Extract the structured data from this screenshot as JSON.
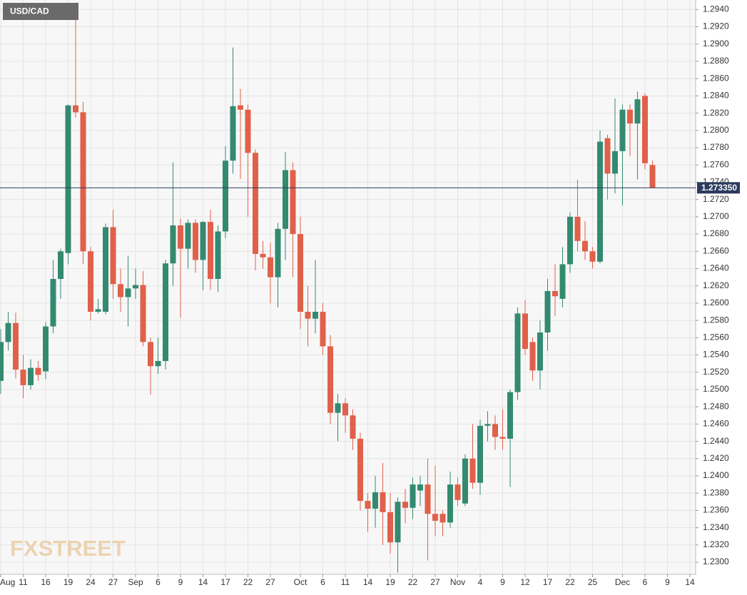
{
  "chart_data": {
    "type": "candlestick",
    "title": "USD/CAD",
    "watermark": "FXSTREET",
    "up_color": "#338a70",
    "down_color": "#e0604a",
    "grid": true,
    "categories": [
      "Aug",
      null,
      null,
      "11",
      null,
      null,
      "16",
      null,
      null,
      "19",
      null,
      null,
      "24",
      null,
      null,
      "27",
      null,
      null,
      "Sep",
      null,
      null,
      "6",
      null,
      null,
      "9",
      null,
      null,
      "14",
      null,
      null,
      "17",
      null,
      null,
      "22",
      null,
      null,
      "27",
      null,
      null,
      null,
      "Oct",
      null,
      null,
      "6",
      null,
      null,
      "11",
      null,
      null,
      "14",
      null,
      null,
      "19",
      null,
      null,
      "22",
      null,
      null,
      "27",
      null,
      null,
      "Nov",
      null,
      null,
      "4",
      null,
      null,
      "9",
      null,
      null,
      "12",
      null,
      null,
      "17",
      null,
      null,
      "22",
      null,
      null,
      "25",
      null,
      null,
      null,
      "Dec",
      null,
      null,
      "6",
      null,
      null,
      "9",
      null,
      null,
      "14"
    ],
    "open": [
      1.251,
      1.2555,
      1.2577,
      1.2523,
      1.2505,
      1.2525,
      1.2521,
      1.2573,
      1.2628,
      1.2658,
      1.2829,
      1.2821,
      1.266,
      1.259,
      1.259,
      1.2688,
      1.2622,
      1.2607,
      1.2617,
      1.2621,
      1.2555,
      1.2527,
      1.2533,
      1.2646,
      1.269,
      1.2663,
      1.2693,
      1.265,
      1.2694,
      1.2628,
      1.2683,
      1.2765,
      1.2829,
      1.2824,
      1.2774,
      1.2657,
      1.2653,
      1.263,
      1.2686,
      1.2754,
      1.268,
      1.259,
      1.2582,
      1.259,
      1.255,
      1.2473,
      1.2484,
      1.247,
      1.2443,
      1.2371,
      1.2362,
      1.2381,
      1.2358,
      1.2323,
      1.237,
      1.2363,
      1.2383,
      1.239,
      1.2356,
      1.2356,
      1.2346,
      1.239,
      1.2368,
      1.242,
      1.2392,
      1.2458,
      1.246,
      1.2445,
      1.2443,
      1.2497,
      1.2588,
      1.2555,
      1.2522,
      1.2566,
      1.2614,
      1.2605,
      1.2645,
      1.27,
      1.2672,
      1.266,
      1.2648,
      1.2791,
      1.275,
      1.2776,
      1.2824,
      1.2808,
      1.284,
      1.276,
      null,
      null,
      null,
      null,
      null
    ],
    "high": [
      1.257,
      1.259,
      1.2589,
      1.254,
      1.2535,
      1.2533,
      1.2578,
      1.265,
      1.2663,
      1.283,
      1.2948,
      1.2833,
      1.2665,
      1.2605,
      1.2692,
      1.2708,
      1.264,
      1.2655,
      1.264,
      1.2637,
      1.256,
      1.256,
      1.265,
      1.2763,
      1.2698,
      1.2697,
      1.2697,
      1.2695,
      1.2708,
      1.269,
      1.2782,
      1.2896,
      1.2848,
      1.283,
      1.2778,
      1.2672,
      1.267,
      1.2693,
      1.2775,
      1.2763,
      1.27,
      1.262,
      1.265,
      1.26,
      1.2563,
      1.2495,
      1.249,
      1.2477,
      1.245,
      1.238,
      1.24,
      1.2415,
      1.238,
      1.2375,
      1.2385,
      1.2398,
      1.24,
      1.242,
      1.2412,
      1.236,
      1.2405,
      1.2398,
      1.2425,
      1.246,
      1.2465,
      1.2475,
      1.247,
      1.2477,
      1.25,
      1.2595,
      1.2604,
      1.256,
      1.258,
      1.2628,
      1.2645,
      1.2665,
      1.2705,
      1.2743,
      1.2695,
      1.2665,
      1.28,
      1.2795,
      1.2837,
      1.283,
      1.283,
      1.2845,
      1.2843,
      1.2765,
      null,
      null,
      null,
      null,
      null
    ],
    "low": [
      1.2495,
      1.2545,
      1.2513,
      1.249,
      1.25,
      1.251,
      1.2512,
      1.2565,
      1.2605,
      1.2645,
      1.2815,
      1.2645,
      1.258,
      1.2588,
      1.2587,
      1.2605,
      1.259,
      1.2573,
      1.2605,
      1.255,
      1.2494,
      1.2518,
      1.2523,
      1.262,
      1.2583,
      1.264,
      1.2635,
      1.2615,
      1.2615,
      1.2613,
      1.2675,
      1.275,
      1.2744,
      1.27,
      1.2638,
      1.264,
      1.26,
      1.2595,
      1.265,
      1.263,
      1.257,
      1.255,
      1.2565,
      1.254,
      1.246,
      1.244,
      1.245,
      1.243,
      1.236,
      1.2335,
      1.234,
      1.232,
      1.231,
      1.2288,
      1.2345,
      1.235,
      1.2365,
      1.2302,
      1.233,
      1.233,
      1.234,
      1.2365,
      1.2365,
      1.2385,
      1.2378,
      1.244,
      1.243,
      1.243,
      1.2387,
      1.2488,
      1.254,
      1.251,
      1.25,
      1.2545,
      1.2585,
      1.2595,
      1.2635,
      1.266,
      1.265,
      1.264,
      1.2646,
      1.272,
      1.2727,
      1.2713,
      1.277,
      1.2743,
      1.2755,
      1.2733,
      null,
      null,
      null,
      null,
      null
    ],
    "close": [
      1.2555,
      1.2577,
      1.2523,
      1.2505,
      1.2525,
      1.2517,
      1.2573,
      1.2628,
      1.266,
      1.2829,
      1.2821,
      1.266,
      1.259,
      1.2593,
      1.2688,
      1.2622,
      1.2607,
      1.2617,
      1.2621,
      1.2555,
      1.2527,
      1.2533,
      1.2646,
      1.269,
      1.2663,
      1.2693,
      1.265,
      1.2694,
      1.2628,
      1.2683,
      1.2765,
      1.2828,
      1.2824,
      1.2774,
      1.2657,
      1.2653,
      1.263,
      1.2686,
      1.2754,
      1.268,
      1.259,
      1.2582,
      1.259,
      1.255,
      1.2473,
      1.2484,
      1.247,
      1.2443,
      1.2371,
      1.2362,
      1.2381,
      1.2358,
      1.2323,
      1.237,
      1.2363,
      1.239,
      1.239,
      1.2356,
      1.2348,
      1.2346,
      1.239,
      1.2372,
      1.242,
      1.2392,
      1.2458,
      1.246,
      1.2445,
      1.2443,
      1.2497,
      1.2588,
      1.2547,
      1.2522,
      1.2566,
      1.2614,
      1.2608,
      1.2645,
      1.27,
      1.2672,
      1.266,
      1.2648,
      1.2787,
      1.275,
      1.2776,
      1.2824,
      1.2808,
      1.2836,
      1.2762,
      1.27335,
      null,
      null,
      null,
      null,
      null
    ],
    "current_price": {
      "value": 1.27335,
      "label": "1.273350",
      "color": "#2b3a5c"
    },
    "ylim": [
      1.2286,
      1.2951
    ],
    "yticks": [
      {
        "value": 1.23,
        "label": "1.2300"
      },
      {
        "value": 1.232,
        "label": "1.2320"
      },
      {
        "value": 1.234,
        "label": "1.2340"
      },
      {
        "value": 1.236,
        "label": "1.2360"
      },
      {
        "value": 1.238,
        "label": "1.2380"
      },
      {
        "value": 1.24,
        "label": "1.2400"
      },
      {
        "value": 1.242,
        "label": "1.2420"
      },
      {
        "value": 1.244,
        "label": "1.2440"
      },
      {
        "value": 1.246,
        "label": "1.2460"
      },
      {
        "value": 1.248,
        "label": "1.2480"
      },
      {
        "value": 1.25,
        "label": "1.2500"
      },
      {
        "value": 1.252,
        "label": "1.2520"
      },
      {
        "value": 1.254,
        "label": "1.2540"
      },
      {
        "value": 1.256,
        "label": "1.2560"
      },
      {
        "value": 1.258,
        "label": "1.2580"
      },
      {
        "value": 1.26,
        "label": "1.2600"
      },
      {
        "value": 1.262,
        "label": "1.2620"
      },
      {
        "value": 1.264,
        "label": "1.2640"
      },
      {
        "value": 1.266,
        "label": "1.2660"
      },
      {
        "value": 1.268,
        "label": "1.2680"
      },
      {
        "value": 1.27,
        "label": "1.2700"
      },
      {
        "value": 1.272,
        "label": "1.2720"
      },
      {
        "value": 1.274,
        "label": "1.2740"
      },
      {
        "value": 1.276,
        "label": "1.2760"
      },
      {
        "value": 1.278,
        "label": "1.2780"
      },
      {
        "value": 1.28,
        "label": "1.2800"
      },
      {
        "value": 1.282,
        "label": "1.2820"
      },
      {
        "value": 1.284,
        "label": "1.2840"
      },
      {
        "value": 1.286,
        "label": "1.2860"
      },
      {
        "value": 1.288,
        "label": "1.2880"
      },
      {
        "value": 1.29,
        "label": "1.2900"
      },
      {
        "value": 1.292,
        "label": "1.2920"
      },
      {
        "value": 1.294,
        "label": "1.2940"
      }
    ]
  }
}
